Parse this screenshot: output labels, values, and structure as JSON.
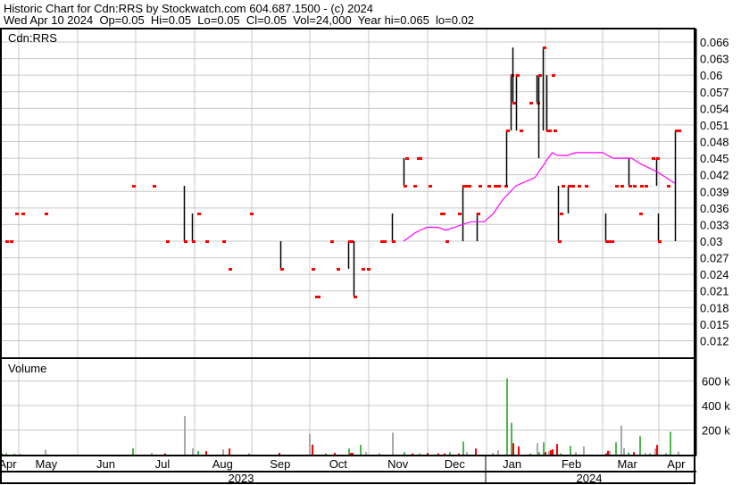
{
  "header": {
    "title": "Historic Chart for Cdn:RRS by Stockwatch.com 604.687.1500 - (c) 2024",
    "summary": "Wed Apr 10 2024  Op=0.05  Hi=0.05  Lo=0.05  Cl=0.05  Vol=24,000  Year hi=0.065  lo=0.02"
  },
  "chart_data": {
    "type": "bar",
    "subtype": "ohlc-with-volume",
    "symbol_label": "Cdn:RRS",
    "volume_label": "Volume",
    "grid": true,
    "colors": {
      "close_tick": "#ff0000",
      "bar": "#000000",
      "moving_average": "#ff00ff",
      "volume_up": "#4cb84c",
      "volume_down": "#ff0000",
      "volume_unchanged": "#a8a8a8",
      "grid": "#c8c8c8"
    },
    "price_axis": {
      "ylim": [
        0.009,
        0.068
      ],
      "ticks": [
        "0.066",
        "0.063",
        "0.06",
        "0.057",
        "0.054",
        "0.051",
        "0.048",
        "0.045",
        "0.042",
        "0.039",
        "0.036",
        "0.033",
        "0.03",
        "0.027",
        "0.024",
        "0.021",
        "0.018",
        "0.015",
        "0.012"
      ]
    },
    "volume_axis": {
      "ylim": [
        0,
        780000
      ],
      "ticks": [
        {
          "value": 600000,
          "label": "600 k"
        },
        {
          "value": 400000,
          "label": "400 k"
        },
        {
          "value": 200000,
          "label": "200 k"
        }
      ]
    },
    "x_axis": {
      "range": [
        "2023-04-11",
        "2024-04-10"
      ],
      "months": [
        {
          "label": "Apr",
          "date": "2023-04-16"
        },
        {
          "label": "May",
          "date": "2023-05-06"
        },
        {
          "label": "Jun",
          "date": "2023-06-06"
        },
        {
          "label": "Jul",
          "date": "2023-07-06"
        },
        {
          "label": "Aug",
          "date": "2023-08-06"
        },
        {
          "label": "Sep",
          "date": "2023-09-06"
        },
        {
          "label": "Oct",
          "date": "2023-10-06"
        },
        {
          "label": "Nov",
          "date": "2023-11-06"
        },
        {
          "label": "Dec",
          "date": "2023-12-06"
        },
        {
          "label": "Jan",
          "date": "2024-01-06"
        },
        {
          "label": "Feb",
          "date": "2024-02-06"
        },
        {
          "label": "Mar",
          "date": "2024-03-07"
        },
        {
          "label": "Apr",
          "date": "2024-04-09"
        }
      ],
      "years": [
        {
          "label": "2023"
        },
        {
          "label": "2024"
        }
      ]
    },
    "bars_columns": [
      "date",
      "high",
      "low",
      "close"
    ],
    "bars": [
      [
        "2023-04-15",
        0.03,
        0.03,
        0.03
      ],
      [
        "2023-04-17",
        0.03,
        0.03,
        0.03
      ],
      [
        "2023-04-20",
        0.035,
        0.035,
        0.035
      ],
      [
        "2023-04-23",
        0.035,
        0.035,
        0.035
      ],
      [
        "2023-05-05",
        0.035,
        0.035,
        0.035
      ],
      [
        "2023-06-20",
        0.04,
        0.04,
        0.04
      ],
      [
        "2023-07-01",
        0.04,
        0.04,
        0.04
      ],
      [
        "2023-07-08",
        0.03,
        0.03,
        0.03
      ],
      [
        "2023-07-17",
        0.04,
        0.03,
        0.03
      ],
      [
        "2023-07-21",
        0.035,
        0.03,
        0.03
      ],
      [
        "2023-07-24",
        0.035,
        0.035,
        0.035
      ],
      [
        "2023-07-28",
        0.03,
        0.03,
        0.03
      ],
      [
        "2023-08-06",
        0.03,
        0.03,
        0.03
      ],
      [
        "2023-08-09",
        0.025,
        0.025,
        0.025
      ],
      [
        "2023-08-21",
        0.035,
        0.035,
        0.035
      ],
      [
        "2023-09-06",
        0.03,
        0.025,
        0.025
      ],
      [
        "2023-09-22",
        0.025,
        0.025,
        0.025
      ],
      [
        "2023-09-24",
        0.02,
        0.02,
        0.02
      ],
      [
        "2023-09-25",
        0.02,
        0.02,
        0.02
      ],
      [
        "2023-10-02",
        0.03,
        0.03,
        0.03
      ],
      [
        "2023-10-05",
        0.025,
        0.025,
        0.025
      ],
      [
        "2023-10-11",
        0.03,
        0.025,
        0.03
      ],
      [
        "2023-10-12",
        0.03,
        0.03,
        0.03
      ],
      [
        "2023-10-14",
        0.03,
        0.02,
        0.02
      ],
      [
        "2023-10-18",
        0.025,
        0.025,
        0.025
      ],
      [
        "2023-10-21",
        0.025,
        0.025,
        0.025
      ],
      [
        "2023-10-28",
        0.03,
        0.03,
        0.03
      ],
      [
        "2023-10-29",
        0.03,
        0.03,
        0.03
      ],
      [
        "2023-11-03",
        0.035,
        0.03,
        0.03
      ],
      [
        "2023-11-09",
        0.045,
        0.04,
        0.04
      ],
      [
        "2023-11-10",
        0.045,
        0.045,
        0.045
      ],
      [
        "2023-11-14",
        0.04,
        0.04,
        0.04
      ],
      [
        "2023-11-16",
        0.045,
        0.045,
        0.045
      ],
      [
        "2023-11-17",
        0.045,
        0.045,
        0.045
      ],
      [
        "2023-11-22",
        0.04,
        0.04,
        0.04
      ],
      [
        "2023-11-28",
        0.035,
        0.035,
        0.035
      ],
      [
        "2023-11-29",
        0.035,
        0.035,
        0.035
      ],
      [
        "2023-12-01",
        0.03,
        0.03,
        0.03
      ],
      [
        "2023-12-08",
        0.035,
        0.035,
        0.035
      ],
      [
        "2023-12-10",
        0.04,
        0.03,
        0.04
      ],
      [
        "2023-12-11",
        0.04,
        0.04,
        0.04
      ],
      [
        "2023-12-13",
        0.04,
        0.04,
        0.04
      ],
      [
        "2023-12-18",
        0.035,
        0.03,
        0.035
      ],
      [
        "2023-12-19",
        0.04,
        0.04,
        0.04
      ],
      [
        "2023-12-24",
        0.04,
        0.04,
        0.04
      ],
      [
        "2023-12-27",
        0.04,
        0.04,
        0.04
      ],
      [
        "2023-12-29",
        0.04,
        0.04,
        0.04
      ],
      [
        "2024-01-02",
        0.04,
        0.04,
        0.04
      ],
      [
        "2024-01-03",
        0.05,
        0.04,
        0.05
      ],
      [
        "2024-01-05",
        0.06,
        0.05,
        0.06
      ],
      [
        "2024-01-06",
        0.065,
        0.055,
        0.055
      ],
      [
        "2024-01-08",
        0.06,
        0.05,
        0.06
      ],
      [
        "2024-01-10",
        0.05,
        0.05,
        0.05
      ],
      [
        "2024-01-15",
        0.055,
        0.055,
        0.055
      ],
      [
        "2024-01-19",
        0.06,
        0.055,
        0.055
      ],
      [
        "2024-01-20",
        0.06,
        0.045,
        0.06
      ],
      [
        "2024-01-22",
        0.065,
        0.05,
        0.065
      ],
      [
        "2024-01-24",
        0.06,
        0.05,
        0.05
      ],
      [
        "2024-01-25",
        0.05,
        0.05,
        0.05
      ],
      [
        "2024-01-27",
        0.06,
        0.06,
        0.06
      ],
      [
        "2024-01-28",
        0.05,
        0.05,
        0.05
      ],
      [
        "2024-01-30",
        0.04,
        0.03,
        0.03
      ],
      [
        "2024-01-31",
        0.035,
        0.035,
        0.035
      ],
      [
        "2024-02-01",
        0.04,
        0.04,
        0.04
      ],
      [
        "2024-02-04",
        0.04,
        0.035,
        0.04
      ],
      [
        "2024-02-06",
        0.04,
        0.04,
        0.04
      ],
      [
        "2024-02-09",
        0.04,
        0.04,
        0.04
      ],
      [
        "2024-02-13",
        0.04,
        0.04,
        0.04
      ],
      [
        "2024-02-23",
        0.035,
        0.03,
        0.03
      ],
      [
        "2024-02-24",
        0.03,
        0.03,
        0.03
      ],
      [
        "2024-02-26",
        0.03,
        0.03,
        0.03
      ],
      [
        "2024-02-28",
        0.04,
        0.04,
        0.04
      ],
      [
        "2024-03-02",
        0.04,
        0.04,
        0.04
      ],
      [
        "2024-03-08",
        0.045,
        0.04,
        0.04
      ],
      [
        "2024-03-11",
        0.04,
        0.04,
        0.04
      ],
      [
        "2024-03-15",
        0.035,
        0.035,
        0.035
      ],
      [
        "2024-03-16",
        0.04,
        0.04,
        0.04
      ],
      [
        "2024-03-19",
        0.04,
        0.04,
        0.04
      ],
      [
        "2024-03-24",
        0.045,
        0.045,
        0.045
      ],
      [
        "2024-03-27",
        0.045,
        0.04,
        0.045
      ],
      [
        "2024-03-28",
        0.035,
        0.03,
        0.03
      ],
      [
        "2024-04-03",
        0.04,
        0.04,
        0.04
      ],
      [
        "2024-04-08",
        0.05,
        0.03,
        0.05
      ],
      [
        "2024-04-10",
        0.05,
        0.05,
        0.05
      ]
    ],
    "moving_average": [
      [
        "2023-11-09",
        0.03
      ],
      [
        "2023-11-15",
        0.0315
      ],
      [
        "2023-11-21",
        0.0325
      ],
      [
        "2023-11-27",
        0.0325
      ],
      [
        "2023-12-01",
        0.032
      ],
      [
        "2023-12-06",
        0.0325
      ],
      [
        "2023-12-10",
        0.033
      ],
      [
        "2023-12-15",
        0.0335
      ],
      [
        "2023-12-22",
        0.0335
      ],
      [
        "2023-12-27",
        0.035
      ],
      [
        "2024-01-01",
        0.0375
      ],
      [
        "2024-01-08",
        0.04
      ],
      [
        "2024-01-18",
        0.0415
      ],
      [
        "2024-01-23",
        0.044
      ],
      [
        "2024-01-27",
        0.046
      ],
      [
        "2024-01-30",
        0.0455
      ],
      [
        "2024-02-04",
        0.0455
      ],
      [
        "2024-02-08",
        0.046
      ],
      [
        "2024-02-22",
        0.046
      ],
      [
        "2024-02-27",
        0.045
      ],
      [
        "2024-03-10",
        0.045
      ],
      [
        "2024-03-16",
        0.044
      ],
      [
        "2024-03-28",
        0.0425
      ],
      [
        "2024-04-08",
        0.0405
      ]
    ],
    "volume_columns": [
      "date",
      "volume",
      "direction"
    ],
    "volume": [
      [
        "2023-04-13",
        8000,
        "up"
      ],
      [
        "2023-04-15",
        15000,
        "unchanged"
      ],
      [
        "2023-04-19",
        8000,
        "up"
      ],
      [
        "2023-04-22",
        6000,
        "unchanged"
      ],
      [
        "2023-05-05",
        40000,
        "unchanged"
      ],
      [
        "2023-06-20",
        52000,
        "up"
      ],
      [
        "2023-06-30",
        14000,
        "unchanged"
      ],
      [
        "2023-07-07",
        10000,
        "down"
      ],
      [
        "2023-07-17",
        314000,
        "unchanged"
      ],
      [
        "2023-07-21",
        52000,
        "unchanged"
      ],
      [
        "2023-07-24",
        29000,
        "up"
      ],
      [
        "2023-07-28",
        29000,
        "down"
      ],
      [
        "2023-08-06",
        43000,
        "unchanged"
      ],
      [
        "2023-08-09",
        50000,
        "down"
      ],
      [
        "2023-08-20",
        10000,
        "up"
      ],
      [
        "2023-09-05",
        14000,
        "down"
      ],
      [
        "2023-09-21",
        171000,
        "unchanged"
      ],
      [
        "2023-09-22",
        81000,
        "down"
      ],
      [
        "2023-09-29",
        10000,
        "up"
      ],
      [
        "2023-10-04",
        14000,
        "down"
      ],
      [
        "2023-10-11",
        50000,
        "up"
      ],
      [
        "2023-10-12",
        14000,
        "down"
      ],
      [
        "2023-10-13",
        14000,
        "down"
      ],
      [
        "2023-10-17",
        79000,
        "up"
      ],
      [
        "2023-10-20",
        21000,
        "unchanged"
      ],
      [
        "2023-10-27",
        10000,
        "up"
      ],
      [
        "2023-11-03",
        179000,
        "unchanged"
      ],
      [
        "2023-11-09",
        21000,
        "up"
      ],
      [
        "2023-11-13",
        10000,
        "down"
      ],
      [
        "2023-11-17",
        10000,
        "up"
      ],
      [
        "2023-11-21",
        14000,
        "down"
      ],
      [
        "2023-11-27",
        10000,
        "down"
      ],
      [
        "2023-11-30",
        10000,
        "down"
      ],
      [
        "2023-12-03",
        21000,
        "up"
      ],
      [
        "2023-12-08",
        10000,
        "down"
      ],
      [
        "2023-12-10",
        107000,
        "up"
      ],
      [
        "2023-12-12",
        21000,
        "unchanged"
      ],
      [
        "2023-12-17",
        50000,
        "down"
      ],
      [
        "2023-12-26",
        14000,
        "unchanged"
      ],
      [
        "2023-12-29",
        36000,
        "unchanged"
      ],
      [
        "2024-01-03",
        621000,
        "up"
      ],
      [
        "2024-01-05",
        260000,
        "up"
      ],
      [
        "2024-01-06",
        93000,
        "down"
      ],
      [
        "2024-01-09",
        67000,
        "down"
      ],
      [
        "2024-01-15",
        10000,
        "up"
      ],
      [
        "2024-01-19",
        93000,
        "unchanged"
      ],
      [
        "2024-01-20",
        21000,
        "up"
      ],
      [
        "2024-01-22",
        100000,
        "up"
      ],
      [
        "2024-01-23",
        21000,
        "down"
      ],
      [
        "2024-01-25",
        31000,
        "unchanged"
      ],
      [
        "2024-01-26",
        36000,
        "down"
      ],
      [
        "2024-01-27",
        43000,
        "down"
      ],
      [
        "2024-01-29",
        86000,
        "down"
      ],
      [
        "2024-01-31",
        10000,
        "up"
      ],
      [
        "2024-02-05",
        71000,
        "up"
      ],
      [
        "2024-02-08",
        21000,
        "unchanged"
      ],
      [
        "2024-02-12",
        67000,
        "unchanged"
      ],
      [
        "2024-02-23",
        10000,
        "down"
      ],
      [
        "2024-02-24",
        31000,
        "down"
      ],
      [
        "2024-02-25",
        31000,
        "unchanged"
      ],
      [
        "2024-02-28",
        100000,
        "up"
      ],
      [
        "2024-03-02",
        236000,
        "unchanged"
      ],
      [
        "2024-03-04",
        52000,
        "unchanged"
      ],
      [
        "2024-03-07",
        17000,
        "up"
      ],
      [
        "2024-03-11",
        21000,
        "down"
      ],
      [
        "2024-03-15",
        150000,
        "up"
      ],
      [
        "2024-03-19",
        14000,
        "unchanged"
      ],
      [
        "2024-03-22",
        10000,
        "up"
      ],
      [
        "2024-03-26",
        52000,
        "unchanged"
      ],
      [
        "2024-03-27",
        79000,
        "down"
      ],
      [
        "2024-04-02",
        10000,
        "up"
      ],
      [
        "2024-04-05",
        186000,
        "up"
      ],
      [
        "2024-04-10",
        24000,
        "unchanged"
      ]
    ]
  }
}
